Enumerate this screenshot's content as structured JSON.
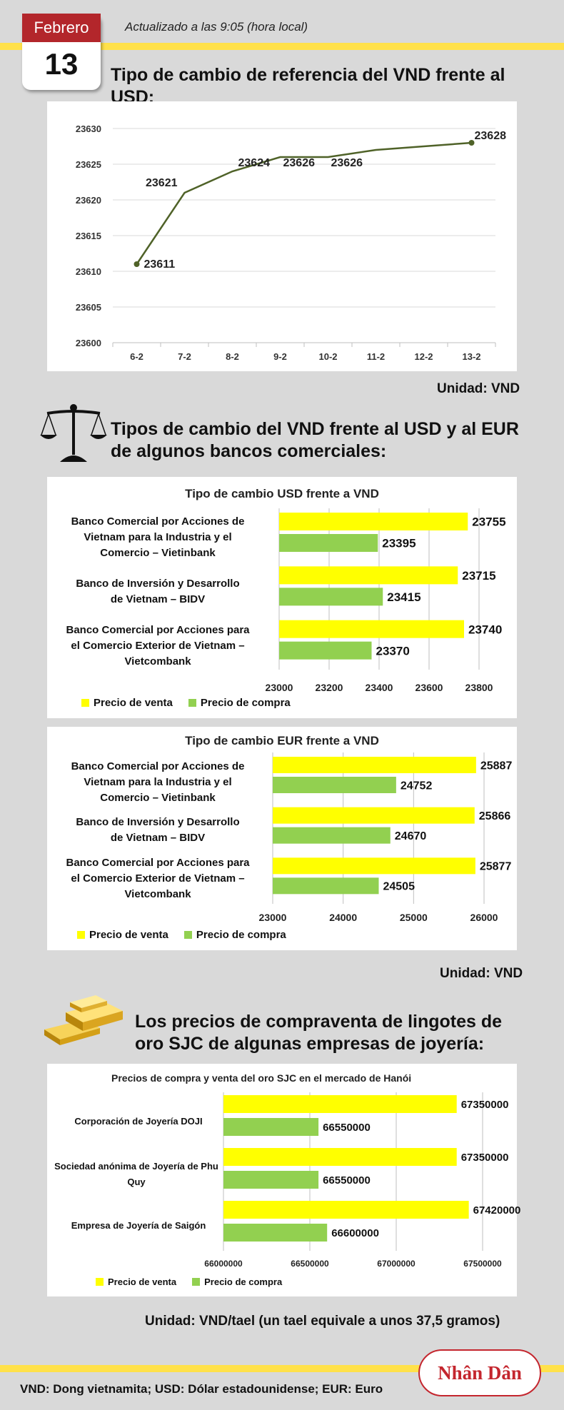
{
  "header": {
    "month": "Febrero",
    "day": "13",
    "updated": "Actualizado a las 9:05 (hora local)"
  },
  "section1": {
    "title": "Tipo de cambio de referencia del VND frente al USD:",
    "unit": "Unidad: VND"
  },
  "section2": {
    "title": "Tipos de cambio del VND frente al USD y al EUR de algunos bancos comerciales:",
    "unit": "Unidad: VND"
  },
  "section3": {
    "title": "Los precios de compraventa de lingotes de oro SJC de algunas empresas de joyería:",
    "unit": "Unidad: VND/tael (un tael equivale a unos 37,5 gramos)"
  },
  "logo_text": "Nhân Dân",
  "footer": "VND: Dong vietnamita; USD: Dólar estadounidense; EUR: Euro",
  "colors": {
    "line": "#4f6228",
    "sell": "#ffff00",
    "buy": "#92d050",
    "calendar": "#b3262b",
    "band": "#ffe14a"
  },
  "chart_data": [
    {
      "type": "line",
      "title": "",
      "categories": [
        "6-2",
        "7-2",
        "8-2",
        "9-2",
        "10-2",
        "11-2",
        "12-2",
        "13-2"
      ],
      "values": [
        23611,
        23621,
        23624,
        23626,
        23626,
        23627,
        23627.5,
        23628
      ],
      "data_labels": [
        "23611",
        "23621",
        "23624",
        "23626",
        "23626",
        null,
        null,
        "23628"
      ],
      "yticks": [
        "23600",
        "23605",
        "23610",
        "23615",
        "23620",
        "23625",
        "23630"
      ],
      "ylim": [
        23600,
        23630
      ],
      "grid": true
    },
    {
      "type": "bar",
      "orientation": "horizontal",
      "title": "Tipo de cambio USD frente a VND",
      "categories": [
        "Banco Comercial por Acciones de Vietnam para la Industria y el Comercio – Vietinbank",
        "Banco de Inversión y Desarrollo de Vietnam – BIDV",
        "Banco Comercial por Acciones para el Comercio Exterior de Vietnam – Vietcombank"
      ],
      "series": [
        {
          "name": "Precio de venta",
          "values": [
            23755,
            23715,
            23740
          ]
        },
        {
          "name": "Precio de compra",
          "values": [
            23395,
            23415,
            23370
          ]
        }
      ],
      "value_labels": [
        [
          "23755",
          "23715",
          "23740"
        ],
        [
          "23395",
          "23415",
          "23370"
        ]
      ],
      "xticks": [
        "23000",
        "23200",
        "23400",
        "23600",
        "23800"
      ],
      "xlim": [
        23000,
        23800
      ],
      "legend": "bottom-left",
      "grid": true
    },
    {
      "type": "bar",
      "orientation": "horizontal",
      "title": "Tipo de cambio EUR frente a VND",
      "categories": [
        "Banco Comercial por Acciones de Vietnam para la Industria y el Comercio – Vietinbank",
        "Banco de Inversión y Desarrollo de Vietnam – BIDV",
        "Banco Comercial por Acciones para el Comercio Exterior de Vietnam – Vietcombank"
      ],
      "series": [
        {
          "name": "Precio de venta",
          "values": [
            25887,
            25866,
            25877
          ]
        },
        {
          "name": "Precio de compra",
          "values": [
            24752,
            24670,
            24505
          ]
        }
      ],
      "value_labels": [
        [
          "25887",
          "25866",
          "25877"
        ],
        [
          "24752",
          "24670",
          "24505"
        ]
      ],
      "xticks": [
        "23000",
        "24000",
        "25000",
        "26000"
      ],
      "xlim": [
        23000,
        26000
      ],
      "legend": "bottom-left",
      "grid": true
    },
    {
      "type": "bar",
      "orientation": "horizontal",
      "title": "Precios de compra y venta del oro SJC en el mercado de Hanói",
      "categories": [
        "Corporación de Joyería DOJI",
        "Sociedad anónima de Joyería de Phu Quy",
        "Empresa de Joyería de Saigón"
      ],
      "series": [
        {
          "name": "Precio de venta",
          "values": [
            67350000,
            67350000,
            67420000
          ]
        },
        {
          "name": "Precio de compra",
          "values": [
            66550000,
            66550000,
            66600000
          ]
        }
      ],
      "value_labels": [
        [
          "67350000",
          "67350000",
          "67420000"
        ],
        [
          "66550000",
          "66550000",
          "66600000"
        ]
      ],
      "xticks": [
        "66000000",
        "66500000",
        "67000000",
        "67500000"
      ],
      "xlim": [
        66000000,
        67500000
      ],
      "legend": "bottom-left",
      "grid": true
    }
  ]
}
